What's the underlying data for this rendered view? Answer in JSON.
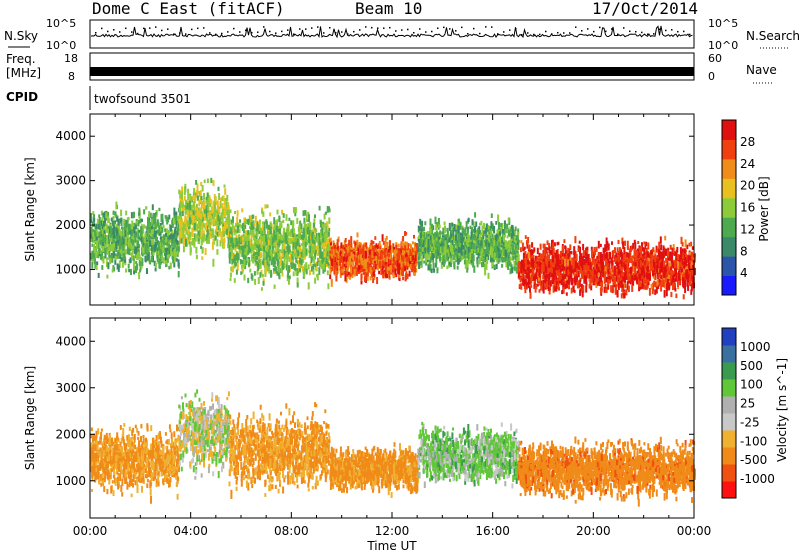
{
  "header": {
    "station": "Dome C East (fitACF)",
    "beam": "Beam 10",
    "date": "17/Oct/2014"
  },
  "status_panels": {
    "nsky_label": "N.Sky",
    "nsky_ticks": [
      "10^5",
      "10^0"
    ],
    "nsearch_label": "N.Search",
    "nsearch_ticks": [
      "10^5",
      "10^0"
    ],
    "freq_label": "Freq.",
    "freq_unit": "[MHz]",
    "freq_ticks": [
      "18",
      "8"
    ],
    "nave_label": "Nave",
    "nave_ticks": [
      "60",
      "0"
    ],
    "cpid_label": "CPID",
    "cpid_value": "twofsound 3501"
  },
  "colors": {
    "power": [
      "#1a1aff",
      "#2a55a8",
      "#3a8a6a",
      "#4eaa4e",
      "#8ccc3a",
      "#e8c020",
      "#f08c1a",
      "#f04010",
      "#e01010"
    ],
    "velocity": [
      "#ff1010",
      "#f05010",
      "#f08a18",
      "#f0b030",
      "#c8c8c8",
      "#b0b0b0",
      "#60c838",
      "#3a9a50",
      "#3a70a0",
      "#2040c0"
    ]
  },
  "chart_data": [
    {
      "type": "heatmap",
      "name": "power",
      "ylabel": "Slant Range [km]",
      "xlabel": "",
      "ylim": [
        200,
        4500
      ],
      "xlim": [
        0,
        24
      ],
      "yticks": [
        "1000",
        "2000",
        "3000",
        "4000"
      ],
      "xticks": [],
      "colorbar": {
        "label": "Power [dB]",
        "ticks": [
          "4",
          "8",
          "12",
          "16",
          "20",
          "24",
          "28"
        ],
        "range": [
          0,
          30
        ]
      },
      "scatter_regions": [
        {
          "x_start": 0.0,
          "x_end": 3.5,
          "y_center": 1700,
          "y_spread": 600,
          "level": 12
        },
        {
          "x_start": 3.5,
          "x_end": 5.5,
          "y_center": 2200,
          "y_spread": 700,
          "level": 16
        },
        {
          "x_start": 5.5,
          "x_end": 9.5,
          "y_center": 1600,
          "y_spread": 700,
          "level": 14
        },
        {
          "x_start": 9.5,
          "x_end": 13.0,
          "y_center": 1300,
          "y_spread": 400,
          "level": 24
        },
        {
          "x_start": 13.0,
          "x_end": 17.0,
          "y_center": 1600,
          "y_spread": 500,
          "level": 12
        },
        {
          "x_start": 17.0,
          "x_end": 24.0,
          "y_center": 1100,
          "y_spread": 500,
          "level": 27
        }
      ]
    },
    {
      "type": "heatmap",
      "name": "velocity",
      "ylabel": "Slant Range [km]",
      "xlabel": "Time UT",
      "ylim": [
        200,
        4500
      ],
      "xlim": [
        0,
        24
      ],
      "yticks": [
        "1000",
        "2000",
        "3000",
        "4000"
      ],
      "xticks": [
        "00:00",
        "04:00",
        "08:00",
        "12:00",
        "16:00",
        "20:00",
        "00:00"
      ],
      "colorbar": {
        "label": "Velocity [m s^-1]",
        "ticks": [
          "1000",
          "500",
          "100",
          "25",
          "-25",
          "-100",
          "-500",
          "-1000"
        ]
      },
      "scatter_regions": [
        {
          "x_start": 0.0,
          "x_end": 3.5,
          "y_center": 1500,
          "y_spread": 600,
          "level": -100
        },
        {
          "x_start": 3.5,
          "x_end": 5.5,
          "y_center": 2100,
          "y_spread": 700,
          "level": 0
        },
        {
          "x_start": 5.5,
          "x_end": 9.5,
          "y_center": 1700,
          "y_spread": 700,
          "level": -100
        },
        {
          "x_start": 9.5,
          "x_end": 13.0,
          "y_center": 1300,
          "y_spread": 400,
          "level": -120
        },
        {
          "x_start": 13.0,
          "x_end": 17.0,
          "y_center": 1600,
          "y_spread": 500,
          "level": 50
        },
        {
          "x_start": 17.0,
          "x_end": 24.0,
          "y_center": 1300,
          "y_spread": 500,
          "level": -150
        }
      ]
    }
  ]
}
